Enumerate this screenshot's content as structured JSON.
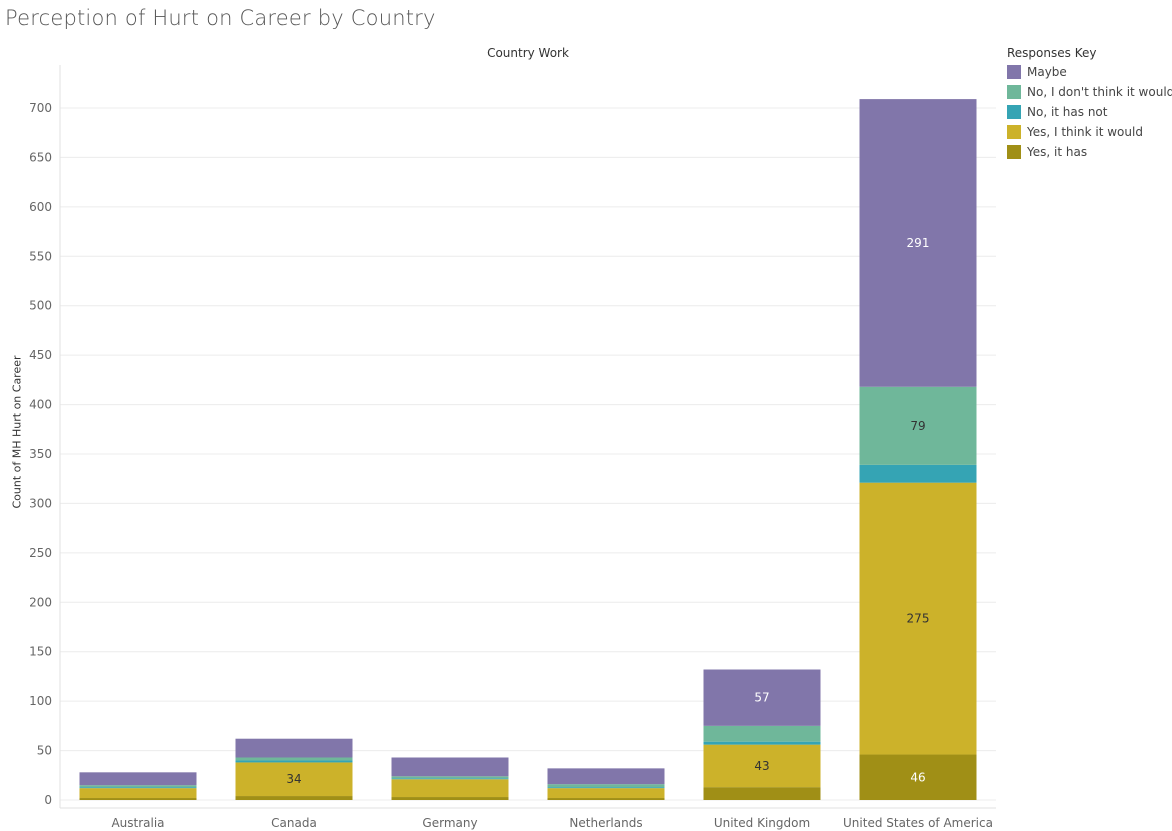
{
  "page_title": "Perception of Hurt on Career by Country",
  "chart_data": {
    "type": "bar",
    "stacked": true,
    "title": "Perception of Hurt on Career by Country",
    "column_header": "Country Work",
    "ylabel": "Count of MH Hurt on Career",
    "xlabel": "",
    "ylim": [
      0,
      730
    ],
    "yticks": [
      0,
      50,
      100,
      150,
      200,
      250,
      300,
      350,
      400,
      450,
      500,
      550,
      600,
      650,
      700
    ],
    "grid": true,
    "legend_title": "Responses Key",
    "legend_position": "right",
    "categories": [
      "Australia",
      "Canada",
      "Germany",
      "Netherlands",
      "United Kingdom",
      "United States of America"
    ],
    "series": [
      {
        "name": "Yes, it has",
        "color": "#a08f16",
        "values": [
          2,
          4,
          3,
          2,
          13,
          46
        ]
      },
      {
        "name": "Yes, I think it would",
        "color": "#ccb22a",
        "values": [
          10,
          34,
          18,
          10,
          43,
          275
        ]
      },
      {
        "name": "No, it has not",
        "color": "#35a4b4",
        "values": [
          1,
          2,
          1,
          1,
          3,
          18
        ]
      },
      {
        "name": "No, I don't think it would",
        "color": "#6fb79a",
        "values": [
          2,
          3,
          2,
          3,
          16,
          79
        ]
      },
      {
        "name": "Maybe",
        "color": "#8176aa",
        "values": [
          13,
          19,
          19,
          16,
          57,
          291
        ]
      }
    ],
    "legend_order": [
      "Maybe",
      "No, I don't think it would",
      "No, it has not",
      "Yes, I think it would",
      "Yes, it has"
    ],
    "data_labels": [
      {
        "category": "Canada",
        "series": "Yes, I think it would",
        "text": "34",
        "color": "#333333"
      },
      {
        "category": "United Kingdom",
        "series": "Maybe",
        "text": "57",
        "color": "#ffffff"
      },
      {
        "category": "United Kingdom",
        "series": "Yes, I think it would",
        "text": "43",
        "color": "#333333"
      },
      {
        "category": "United States of America",
        "series": "Maybe",
        "text": "291",
        "color": "#ffffff"
      },
      {
        "category": "United States of America",
        "series": "No, I don't think it would",
        "text": "79",
        "color": "#333333"
      },
      {
        "category": "United States of America",
        "series": "Yes, I think it would",
        "text": "275",
        "color": "#333333"
      },
      {
        "category": "United States of America",
        "series": "Yes, it has",
        "text": "46",
        "color": "#ffffff"
      }
    ]
  }
}
